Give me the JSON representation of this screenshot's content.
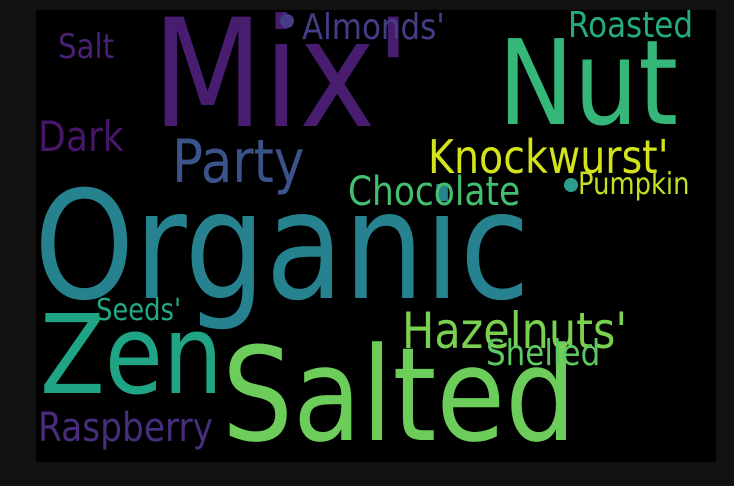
{
  "wordcloud": {
    "background": "#000000",
    "words": [
      {
        "text": "Mix'",
        "color": "#481d6f"
      },
      {
        "text": "Nut",
        "color": "#35b779"
      },
      {
        "text": "Organic",
        "color": "#26828e"
      },
      {
        "text": "Salted",
        "color": "#6ccd5a"
      },
      {
        "text": "Zen",
        "color": "#20a486"
      },
      {
        "text": "Party",
        "color": "#3b528b"
      },
      {
        "text": "Knockwurst'",
        "color": "#d2e21b"
      },
      {
        "text": "Hazelnuts'",
        "color": "#7ad151"
      },
      {
        "text": "Chocolate",
        "color": "#44bf70"
      },
      {
        "text": "Pumpkin",
        "color": "#c2df23"
      },
      {
        "text": "Almonds'",
        "color": "#433e85"
      },
      {
        "text": "Roasted",
        "color": "#25ab82"
      },
      {
        "text": "Salt",
        "color": "#482173"
      },
      {
        "text": "Dark",
        "color": "#481668"
      },
      {
        "text": "Seeds'",
        "color": "#22a884"
      },
      {
        "text": "Shelled",
        "color": "#5ec962"
      },
      {
        "text": "Raspberry",
        "color": "#472d7b"
      }
    ]
  }
}
